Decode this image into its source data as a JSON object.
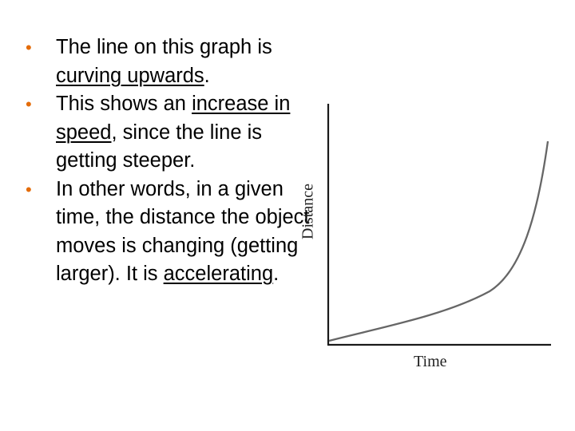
{
  "bullets": [
    {
      "segments": [
        {
          "text": "The line on this graph is "
        },
        {
          "text": "curving upwards",
          "underline": true
        },
        {
          "text": "."
        }
      ]
    },
    {
      "segments": [
        {
          "text": "This shows an "
        },
        {
          "text": "increase in speed",
          "underline": true
        },
        {
          "text": ", since the line is getting steeper."
        }
      ]
    },
    {
      "segments": [
        {
          "text": "In other words, in a given time, the distance the object moves is changing (getting larger).  It is "
        },
        {
          "text": "accelerating",
          "underline": true
        },
        {
          "text": "."
        }
      ]
    }
  ],
  "bullet_symbol": "•",
  "colors": {
    "bullet": "#e46c0a",
    "text": "#000000",
    "axis": "#1a1a1a",
    "curve": "#666666"
  },
  "chart_data": {
    "type": "line",
    "xlabel": "Time",
    "ylabel": "Distance",
    "shape": "curving upwards",
    "grid": false,
    "legend": "none"
  }
}
